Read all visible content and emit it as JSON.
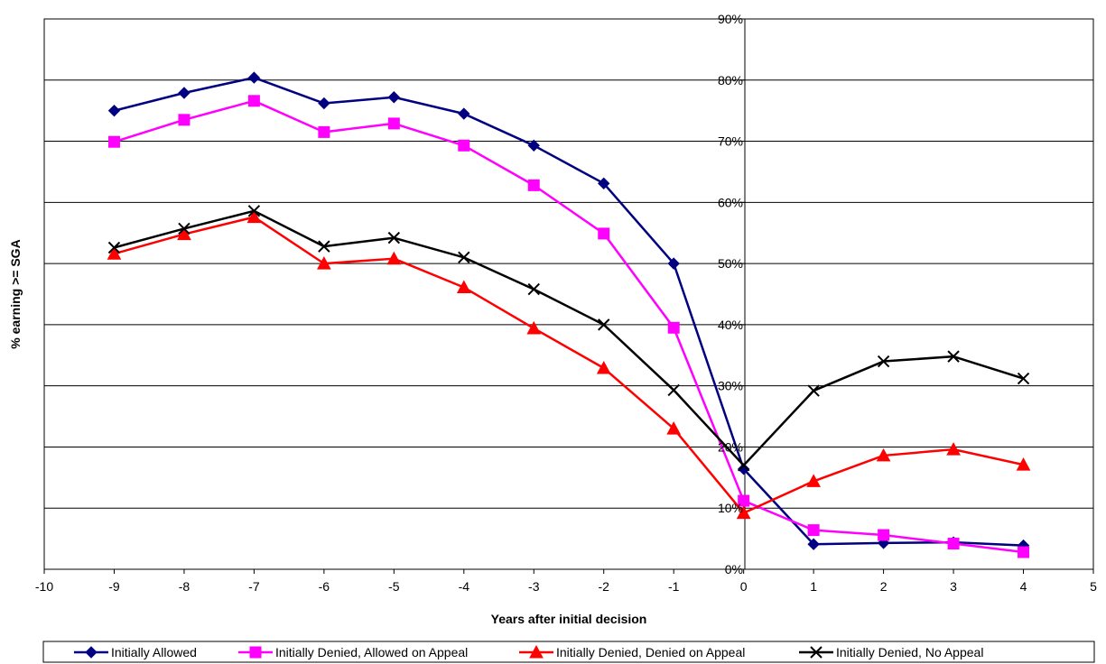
{
  "chart_data": {
    "type": "line",
    "title": "",
    "xlabel": "Years after initial decision",
    "ylabel": "% earning >= SGA",
    "xlim": [
      -10,
      5
    ],
    "ylim": [
      0,
      90
    ],
    "x_ticks": [
      "-10",
      "-9",
      "-8",
      "-7",
      "-6",
      "-5",
      "-4",
      "-3",
      "-2",
      "-1",
      "0",
      "1",
      "2",
      "3",
      "4",
      "5"
    ],
    "y_ticks": [
      "0%",
      "10%",
      "20%",
      "30%",
      "40%",
      "50%",
      "60%",
      "70%",
      "80%",
      "90%"
    ],
    "grid": "horizontal",
    "legend_position": "bottom",
    "x": [
      -9,
      -8,
      -7,
      -6,
      -5,
      -4,
      -3,
      -2,
      -1,
      0,
      1,
      2,
      3,
      4
    ],
    "series": [
      {
        "name": "Initially Allowed",
        "color": "#000080",
        "marker": "diamond",
        "values": [
          75.0,
          77.9,
          80.4,
          76.2,
          77.2,
          74.5,
          69.3,
          63.1,
          50.0,
          16.4,
          4.1,
          4.3,
          4.4,
          3.9
        ]
      },
      {
        "name": "Initially Denied, Allowed on Appeal",
        "color": "#ff00ff",
        "marker": "square",
        "values": [
          69.9,
          73.5,
          76.6,
          71.5,
          72.9,
          69.3,
          62.8,
          54.9,
          39.5,
          11.2,
          6.4,
          5.6,
          4.2,
          2.8
        ]
      },
      {
        "name": "Initially Denied, Denied on Appeal",
        "color": "#ff0000",
        "marker": "triangle",
        "values": [
          51.6,
          54.8,
          57.6,
          50.0,
          50.8,
          46.1,
          39.4,
          32.9,
          23.0,
          9.2,
          14.4,
          18.6,
          19.6,
          17.1
        ]
      },
      {
        "name": "Initially Denied, No Appeal",
        "color": "#000000",
        "marker": "x",
        "values": [
          52.6,
          55.7,
          58.6,
          52.8,
          54.2,
          51.0,
          45.8,
          40.0,
          29.3,
          17.0,
          29.2,
          34.0,
          34.8,
          31.2
        ]
      }
    ]
  }
}
